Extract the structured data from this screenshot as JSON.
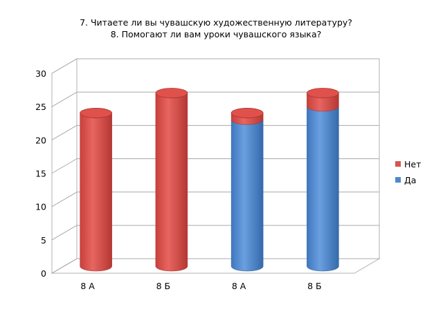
{
  "chart_data": {
    "type": "bar",
    "title": [
      "7. Читаете ли вы чувашскую художественную литературу?",
      "8.  Помогают ли вам уроки чувашского языка?"
    ],
    "categories": [
      "8 А",
      "8 Б",
      "8 А",
      "8 Б"
    ],
    "series": [
      {
        "name": "Нет",
        "color": "#d9534f",
        "values": [
          23,
          26,
          1,
          2
        ]
      },
      {
        "name": "Да",
        "color": "#4f88cc",
        "values": [
          0,
          0,
          22,
          24
        ]
      }
    ],
    "stacked": true,
    "three_d": true,
    "ylim": [
      0,
      30
    ],
    "yticks": [
      0,
      5,
      10,
      15,
      20,
      25,
      30
    ],
    "grid": true,
    "legend_position": "right"
  }
}
